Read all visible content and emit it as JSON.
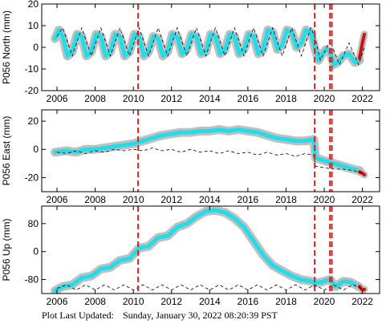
{
  "footer": {
    "label": "Plot Last Updated:",
    "timestamp": "Sunday, January 30, 2022 08:20:39 PST"
  },
  "colors": {
    "data": "#22dde8",
    "error": "#b5b5b5",
    "model": "#000000",
    "event": "#dd2222",
    "recent": "#cc1111"
  },
  "chart_data": [
    {
      "type": "scatter",
      "ylabel": "P056 North (mm)",
      "x_ticks": [
        2006,
        2008,
        2010,
        2012,
        2014,
        2016,
        2018,
        2020,
        2022
      ],
      "y_ticks": [
        -20,
        -10,
        0,
        10,
        20
      ],
      "xlim": [
        2005.2,
        2022.9
      ],
      "ylim": [
        -20,
        20
      ],
      "events": [
        2010.25,
        2019.5,
        2020.3,
        2020.4
      ],
      "series": [
        {
          "values": [
            [
              2005.9,
              4
            ],
            [
              2006.1,
              8
            ],
            [
              2006.3,
              5
            ],
            [
              2006.55,
              -4
            ],
            [
              2006.8,
              -2
            ],
            [
              2007.05,
              6
            ],
            [
              2007.3,
              5
            ],
            [
              2007.55,
              -4
            ],
            [
              2007.8,
              -2
            ],
            [
              2008.05,
              6
            ],
            [
              2008.3,
              5
            ],
            [
              2008.55,
              -4
            ],
            [
              2008.8,
              -2
            ],
            [
              2009.05,
              6
            ],
            [
              2009.3,
              5
            ],
            [
              2009.55,
              -4
            ],
            [
              2009.8,
              -2
            ],
            [
              2010.05,
              6
            ],
            [
              2010.3,
              5
            ],
            [
              2010.55,
              -4
            ],
            [
              2010.8,
              -2
            ],
            [
              2011.05,
              5
            ],
            [
              2011.3,
              4
            ],
            [
              2011.55,
              -4
            ],
            [
              2011.8,
              -2
            ],
            [
              2012.05,
              6
            ],
            [
              2012.3,
              5
            ],
            [
              2012.55,
              -3
            ],
            [
              2012.8,
              -1
            ],
            [
              2013.05,
              6
            ],
            [
              2013.3,
              5
            ],
            [
              2013.55,
              -3
            ],
            [
              2013.8,
              -2
            ],
            [
              2014.05,
              6
            ],
            [
              2014.3,
              5
            ],
            [
              2014.55,
              -3
            ],
            [
              2014.8,
              -1
            ],
            [
              2015.05,
              6
            ],
            [
              2015.3,
              5
            ],
            [
              2015.55,
              -3
            ],
            [
              2015.8,
              -1
            ],
            [
              2016.05,
              6
            ],
            [
              2016.3,
              5
            ],
            [
              2016.55,
              -3
            ],
            [
              2016.8,
              -1
            ],
            [
              2017.05,
              8
            ],
            [
              2017.3,
              7
            ],
            [
              2017.55,
              -1
            ],
            [
              2017.8,
              1
            ],
            [
              2018.05,
              8
            ],
            [
              2018.3,
              7
            ],
            [
              2018.55,
              0
            ],
            [
              2018.8,
              2
            ],
            [
              2019.05,
              8
            ],
            [
              2019.3,
              7
            ],
            [
              2019.5,
              0
            ],
            [
              2019.7,
              -6
            ],
            [
              2019.9,
              -3
            ],
            [
              2020.1,
              -1
            ],
            [
              2020.3,
              -2
            ],
            [
              2020.5,
              -8
            ],
            [
              2020.7,
              -7
            ],
            [
              2021.0,
              -4
            ],
            [
              2021.3,
              -3
            ],
            [
              2021.6,
              -7
            ],
            [
              2021.85,
              -6
            ]
          ]
        },
        {
          "values": [
            [
              2021.85,
              -5
            ],
            [
              2022.0,
              2
            ],
            [
              2022.1,
              6
            ]
          ]
        },
        {
          "values": [
            [
              2006.0,
              5
            ],
            [
              2006.3,
              9
            ],
            [
              2006.8,
              -4
            ],
            [
              2007.3,
              9
            ],
            [
              2007.8,
              -4
            ],
            [
              2008.3,
              9
            ],
            [
              2008.8,
              -4
            ],
            [
              2009.3,
              9
            ],
            [
              2009.8,
              -4
            ],
            [
              2010.3,
              9
            ],
            [
              2010.8,
              -4
            ],
            [
              2011.3,
              9
            ],
            [
              2011.8,
              -4
            ],
            [
              2012.3,
              9
            ],
            [
              2012.8,
              -4
            ],
            [
              2013.3,
              9
            ],
            [
              2013.8,
              -4
            ],
            [
              2014.3,
              9
            ],
            [
              2014.8,
              -4
            ],
            [
              2015.3,
              9
            ],
            [
              2015.8,
              -4
            ],
            [
              2016.3,
              9
            ],
            [
              2016.8,
              -4
            ],
            [
              2017.3,
              9
            ],
            [
              2017.8,
              -4
            ],
            [
              2018.3,
              9
            ],
            [
              2018.8,
              -4
            ],
            [
              2019.3,
              9
            ],
            [
              2019.5,
              5
            ],
            [
              2019.8,
              -6
            ],
            [
              2020.3,
              3
            ],
            [
              2020.8,
              -8
            ],
            [
              2021.3,
              2
            ],
            [
              2021.8,
              -8
            ],
            [
              2022.1,
              0
            ]
          ]
        }
      ]
    },
    {
      "type": "scatter",
      "ylabel": "P056 East (mm)",
      "x_ticks": [
        2006,
        2008,
        2010,
        2012,
        2014,
        2016,
        2018,
        2020,
        2022
      ],
      "y_ticks": [
        -20,
        0,
        20
      ],
      "xlim": [
        2005.2,
        2022.9
      ],
      "ylim": [
        -30,
        28
      ],
      "events": [
        2010.25,
        2019.5,
        2020.3,
        2020.4
      ],
      "series": [
        {
          "values": [
            [
              2005.9,
              -2
            ],
            [
              2006.5,
              -1
            ],
            [
              2007.0,
              -2
            ],
            [
              2007.5,
              0
            ],
            [
              2008.0,
              0
            ],
            [
              2008.5,
              1
            ],
            [
              2009.0,
              2
            ],
            [
              2009.5,
              3
            ],
            [
              2010.0,
              4
            ],
            [
              2010.5,
              6
            ],
            [
              2011.0,
              8
            ],
            [
              2011.5,
              10
            ],
            [
              2012.0,
              11
            ],
            [
              2012.5,
              12
            ],
            [
              2013.0,
              12
            ],
            [
              2013.5,
              13
            ],
            [
              2014.0,
              13
            ],
            [
              2014.5,
              14
            ],
            [
              2015.0,
              13
            ],
            [
              2015.5,
              14
            ],
            [
              2016.0,
              13
            ],
            [
              2016.5,
              12
            ],
            [
              2017.0,
              10
            ],
            [
              2017.5,
              8
            ],
            [
              2018.0,
              7
            ],
            [
              2018.5,
              6
            ],
            [
              2019.0,
              6
            ],
            [
              2019.45,
              7
            ],
            [
              2019.55,
              -6
            ],
            [
              2020.0,
              -8
            ],
            [
              2020.5,
              -10
            ],
            [
              2021.0,
              -12
            ],
            [
              2021.5,
              -14
            ],
            [
              2021.85,
              -15
            ]
          ]
        },
        {
          "values": [
            [
              2021.85,
              -16
            ],
            [
              2022.0,
              -17
            ],
            [
              2022.1,
              -18
            ]
          ]
        },
        {
          "values": [
            [
              2006.0,
              -2
            ],
            [
              2006.5,
              -3
            ],
            [
              2007.0,
              -1
            ],
            [
              2007.5,
              -3
            ],
            [
              2008.0,
              -1
            ],
            [
              2008.5,
              -2
            ],
            [
              2009.0,
              0
            ],
            [
              2009.5,
              -1
            ],
            [
              2010.0,
              0
            ],
            [
              2010.5,
              -1
            ],
            [
              2011.0,
              1
            ],
            [
              2011.5,
              -1
            ],
            [
              2012.0,
              0
            ],
            [
              2012.5,
              -2
            ],
            [
              2013.0,
              0
            ],
            [
              2013.5,
              -2
            ],
            [
              2014.0,
              -1
            ],
            [
              2014.5,
              -3
            ],
            [
              2015.0,
              -1
            ],
            [
              2015.5,
              -3
            ],
            [
              2016.0,
              -2
            ],
            [
              2016.5,
              -4
            ],
            [
              2017.0,
              -2
            ],
            [
              2017.5,
              -4
            ],
            [
              2018.0,
              -3
            ],
            [
              2018.5,
              -5
            ],
            [
              2019.0,
              -3
            ],
            [
              2019.45,
              -4
            ],
            [
              2019.55,
              -12
            ],
            [
              2020.0,
              -13
            ],
            [
              2020.5,
              -14
            ],
            [
              2021.0,
              -14
            ],
            [
              2021.5,
              -15
            ],
            [
              2022.1,
              -17
            ]
          ]
        }
      ]
    },
    {
      "type": "scatter",
      "ylabel": "P056 Up (mm)",
      "x_ticks": [
        2006,
        2008,
        2010,
        2012,
        2014,
        2016,
        2018,
        2020,
        2022
      ],
      "y_ticks": [
        -80,
        0,
        80
      ],
      "xlim": [
        2005.2,
        2022.9
      ],
      "ylim": [
        -120,
        130
      ],
      "events": [
        2010.25,
        2019.5,
        2020.3,
        2020.4
      ],
      "series": [
        {
          "values": [
            [
              2005.9,
              -112
            ],
            [
              2006.3,
              -100
            ],
            [
              2006.8,
              -95
            ],
            [
              2007.3,
              -75
            ],
            [
              2007.8,
              -70
            ],
            [
              2008.3,
              -50
            ],
            [
              2008.8,
              -45
            ],
            [
              2009.3,
              -25
            ],
            [
              2009.8,
              -20
            ],
            [
              2010.3,
              10
            ],
            [
              2010.8,
              15
            ],
            [
              2011.3,
              40
            ],
            [
              2011.8,
              45
            ],
            [
              2012.3,
              70
            ],
            [
              2012.8,
              80
            ],
            [
              2013.3,
              100
            ],
            [
              2013.8,
              115
            ],
            [
              2014.3,
              118
            ],
            [
              2014.8,
              112
            ],
            [
              2015.3,
              95
            ],
            [
              2015.8,
              70
            ],
            [
              2016.3,
              30
            ],
            [
              2016.8,
              -10
            ],
            [
              2017.3,
              -40
            ],
            [
              2017.8,
              -55
            ],
            [
              2018.3,
              -70
            ],
            [
              2018.8,
              -80
            ],
            [
              2019.3,
              -85
            ],
            [
              2019.5,
              -90
            ],
            [
              2019.8,
              -88
            ],
            [
              2020.3,
              -80
            ],
            [
              2020.6,
              -100
            ],
            [
              2021.0,
              -85
            ],
            [
              2021.4,
              -88
            ],
            [
              2021.8,
              -100
            ]
          ]
        },
        {
          "values": [
            [
              2021.85,
              -100
            ],
            [
              2022.0,
              -110
            ],
            [
              2022.1,
              -108
            ]
          ]
        },
        {
          "values": [
            [
              2006.0,
              -105
            ],
            [
              2006.5,
              -95
            ],
            [
              2007.0,
              -110
            ],
            [
              2007.5,
              -95
            ],
            [
              2008.0,
              -110
            ],
            [
              2008.5,
              -95
            ],
            [
              2009.0,
              -110
            ],
            [
              2009.5,
              -95
            ],
            [
              2010.0,
              -110
            ],
            [
              2010.5,
              -95
            ],
            [
              2011.0,
              -110
            ],
            [
              2011.5,
              -95
            ],
            [
              2012.0,
              -110
            ],
            [
              2012.5,
              -95
            ],
            [
              2013.0,
              -110
            ],
            [
              2013.5,
              -95
            ],
            [
              2014.0,
              -110
            ],
            [
              2014.5,
              -95
            ],
            [
              2015.0,
              -110
            ],
            [
              2015.5,
              -95
            ],
            [
              2016.0,
              -110
            ],
            [
              2016.5,
              -95
            ],
            [
              2017.0,
              -110
            ],
            [
              2017.5,
              -95
            ],
            [
              2018.0,
              -110
            ],
            [
              2018.5,
              -95
            ],
            [
              2019.0,
              -110
            ],
            [
              2019.5,
              -95
            ],
            [
              2020.0,
              -110
            ],
            [
              2020.5,
              -95
            ],
            [
              2021.0,
              -110
            ],
            [
              2021.5,
              -95
            ],
            [
              2022.1,
              -110
            ]
          ]
        }
      ]
    }
  ]
}
